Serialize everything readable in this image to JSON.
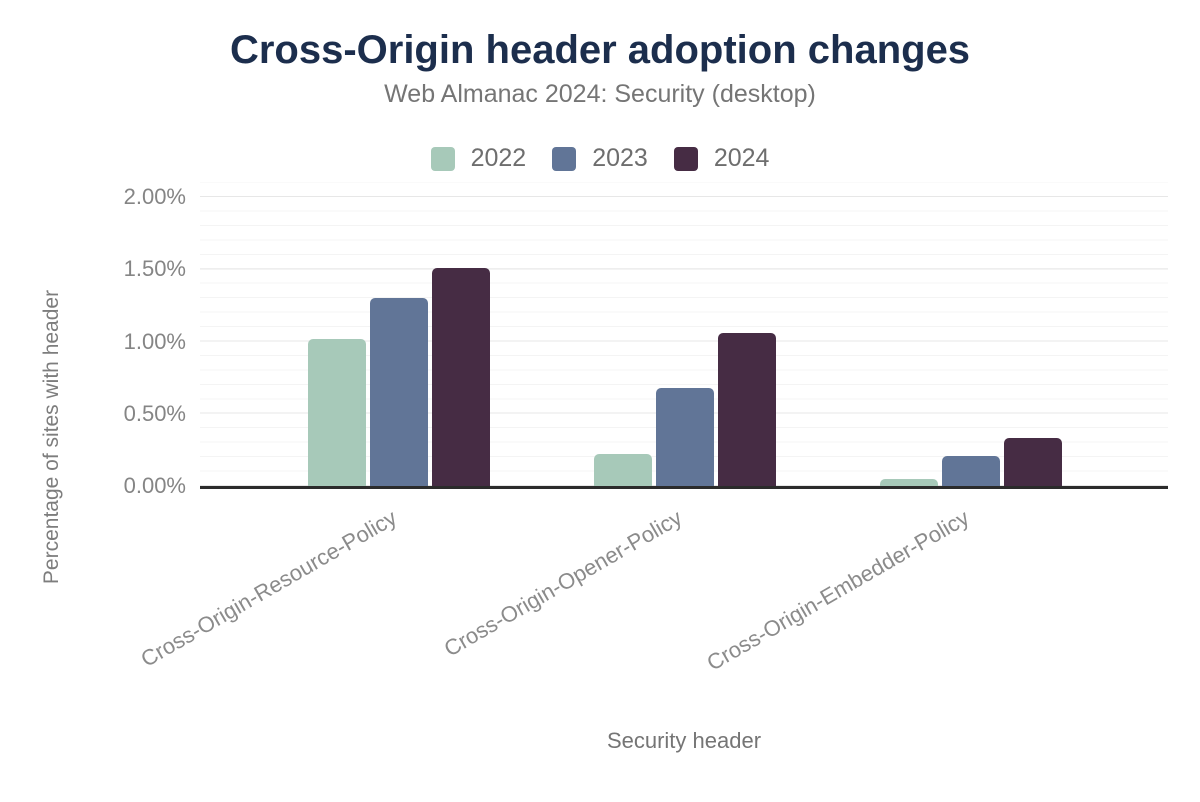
{
  "header": {
    "title": "Cross-Origin header adoption changes",
    "subtitle": "Web Almanac 2024: Security (desktop)"
  },
  "chart_data": {
    "type": "bar",
    "title": "Cross-Origin header adoption changes",
    "subtitle": "Web Almanac 2024: Security (desktop)",
    "categories": [
      "Cross-Origin-Resource-Policy",
      "Cross-Origin-Opener-Policy",
      "Cross-Origin-Embedder-Policy"
    ],
    "series": [
      {
        "name": "2022",
        "color": "#a7c9b9",
        "values": [
          1.02,
          0.22,
          0.05
        ]
      },
      {
        "name": "2023",
        "color": "#617597",
        "values": [
          1.3,
          0.68,
          0.21
        ]
      },
      {
        "name": "2024",
        "color": "#462c44",
        "values": [
          1.51,
          1.06,
          0.33
        ]
      }
    ],
    "xlabel": "Security header",
    "ylabel": "Percentage of sites with header",
    "ylim": [
      0,
      2
    ],
    "y_ticks": [
      {
        "value": 0.0,
        "label": "0.00%"
      },
      {
        "value": 0.5,
        "label": "0.50%"
      },
      {
        "value": 1.0,
        "label": "1.00%"
      },
      {
        "value": 1.5,
        "label": "1.50%"
      },
      {
        "value": 2.0,
        "label": "2.00%"
      }
    ],
    "grid": {
      "orientation": "horizontal",
      "major_interval": 0.5,
      "minor_interval": 0.1
    },
    "legend_position": "top-center",
    "bar_value_unit": "percent"
  },
  "colors": {
    "title": "#1c2e4d",
    "subtitle": "#757575",
    "legend_text": "#6e6e6e",
    "axis_text": "#858585",
    "category_text": "#8b8b8b",
    "gridline_major": "#e7e7e7",
    "gridline_minor": "#f4f4f4",
    "axis_line": "#2b2b2b",
    "background": "#ffffff",
    "series_2022": "#a7c9b9",
    "series_2023": "#617597",
    "series_2024": "#462c44"
  }
}
